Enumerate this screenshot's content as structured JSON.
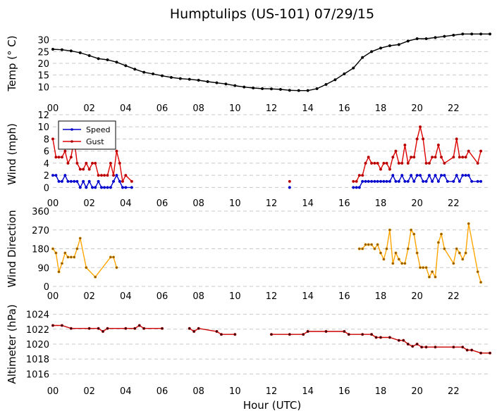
{
  "chart_data": {
    "type": "line",
    "title": "Humptulips (US-101) 07/29/15",
    "xlabel": "Hour (UTC)",
    "x_range": [
      0,
      24
    ],
    "x_ticks": [
      "00",
      "02",
      "04",
      "06",
      "08",
      "10",
      "12",
      "14",
      "16",
      "18",
      "20",
      "22"
    ],
    "grid": "horizontal dashed",
    "panels": [
      {
        "id": "temp",
        "ylabel": "Temp ($^\\circ$C)",
        "ylabel_display": "Temp (° C)",
        "ylim": [
          5,
          35
        ],
        "yticks": [
          10,
          15,
          20,
          25,
          30
        ],
        "series": [
          {
            "color": "#000000",
            "marker_color": "#000000",
            "x": [
              0,
              0.5,
              1,
              1.5,
              2,
              2.5,
              3,
              3.5,
              4,
              4.5,
              5,
              5.5,
              6,
              6.5,
              7,
              7.5,
              8,
              8.5,
              9,
              9.5,
              10,
              10.5,
              11,
              11.5,
              12,
              12.5,
              13,
              13.5,
              14,
              14.5,
              15,
              15.5,
              16,
              16.5,
              17,
              17.5,
              18,
              18.5,
              19,
              19.5,
              20,
              20.5,
              21,
              21.5,
              22,
              22.5,
              23,
              23.5,
              24
            ],
            "values": [
              26,
              25.8,
              25.3,
              24.5,
              23.3,
              22,
              21.5,
              20.5,
              19,
              17.5,
              16.2,
              15.5,
              14.7,
              14,
              13.5,
              13.2,
              12.8,
              12.2,
              11.7,
              11.2,
              10.5,
              9.9,
              9.5,
              9.2,
              9.1,
              8.9,
              8.5,
              8.4,
              8.4,
              9.2,
              11,
              13,
              15.5,
              18,
              22.5,
              25,
              26.5,
              27.5,
              28,
              29.5,
              30.5,
              30.5,
              31,
              31.5,
              32,
              32.5,
              32.5,
              32.5,
              32.5
            ]
          }
        ]
      },
      {
        "id": "wind",
        "ylabel": "Wind (mph)",
        "ylim": [
          -1,
          12
        ],
        "yticks": [
          0,
          2,
          4,
          6,
          8,
          10,
          12
        ],
        "legend": {
          "placement": "top-left"
        },
        "series": [
          {
            "name": "Speed",
            "color": "#0000cc",
            "marker_color": "#0000cc",
            "x": [
              0,
              0.17,
              0.33,
              0.5,
              0.67,
              0.83,
              1,
              1.17,
              1.33,
              1.5,
              1.67,
              1.83,
              2,
              2.17,
              2.33,
              2.5,
              2.67,
              2.83,
              3,
              3.17,
              3.33,
              3.5,
              3.67,
              3.83,
              4,
              4.33,
              13,
              16.5,
              16.67,
              16.83,
              17,
              17.17,
              17.33,
              17.5,
              17.67,
              17.83,
              18,
              18.17,
              18.33,
              18.5,
              18.67,
              18.83,
              19,
              19.17,
              19.33,
              19.5,
              19.67,
              19.83,
              20,
              20.17,
              20.33,
              20.5,
              20.67,
              20.83,
              21,
              21.17,
              21.33,
              21.5,
              21.67,
              22,
              22.17,
              22.33,
              22.5,
              22.67,
              22.83,
              23,
              23.33,
              23.5
            ],
            "values": [
              2,
              2,
              1,
              1,
              2,
              1,
              1,
              1,
              1,
              0,
              1,
              0,
              1,
              0,
              0,
              1,
              0,
              0,
              0,
              0,
              1,
              2,
              1,
              0,
              0,
              0,
              0,
              0,
              0,
              0,
              1,
              1,
              1,
              1,
              1,
              1,
              1,
              1,
              1,
              1,
              2,
              1,
              1,
              2,
              1,
              1,
              2,
              1,
              2,
              2,
              1,
              1,
              2,
              1,
              2,
              1,
              2,
              2,
              1,
              1,
              2,
              1,
              2,
              2,
              2,
              1,
              1,
              1
            ]
          },
          {
            "name": "Gust",
            "color": "#dd0000",
            "marker_color": "#aa0000",
            "x": [
              0,
              0.17,
              0.33,
              0.5,
              0.67,
              0.83,
              1,
              1.17,
              1.33,
              1.5,
              1.67,
              1.83,
              2,
              2.17,
              2.33,
              2.5,
              2.67,
              2.83,
              3,
              3.17,
              3.33,
              3.5,
              3.67,
              3.83,
              4,
              4.33,
              13,
              16.5,
              16.67,
              16.83,
              17,
              17.17,
              17.33,
              17.5,
              17.67,
              17.83,
              18,
              18.17,
              18.33,
              18.5,
              18.67,
              18.83,
              19,
              19.17,
              19.33,
              19.5,
              19.67,
              19.83,
              20,
              20.17,
              20.33,
              20.5,
              20.67,
              20.83,
              21,
              21.17,
              21.33,
              21.5,
              22,
              22.17,
              22.33,
              22.5,
              22.67,
              22.83,
              23.33,
              23.5
            ],
            "values": [
              8,
              5,
              5,
              5,
              6,
              4,
              5,
              8,
              4,
              3,
              3,
              4,
              3,
              4,
              4,
              2,
              2,
              2,
              2,
              4,
              2,
              6,
              4,
              1,
              2,
              1,
              1,
              1,
              1,
              2,
              2,
              4,
              5,
              4,
              4,
              4,
              3,
              4,
              4,
              3,
              5,
              6,
              4,
              4,
              7,
              4,
              5,
              5,
              8,
              10,
              8,
              4,
              4,
              5,
              5,
              7,
              5,
              4,
              5,
              8,
              5,
              5,
              5,
              6,
              4,
              6
            ]
          }
        ]
      },
      {
        "id": "dir",
        "ylabel": "Wind Direction",
        "ylim": [
          0,
          360
        ],
        "yticks": [
          0,
          90,
          180,
          270,
          360
        ],
        "series": [
          {
            "color": "#ffa500",
            "marker_color": "#8b5a00",
            "x": [
              0,
              0.17,
              0.33,
              0.5,
              0.67,
              0.83,
              1,
              1.17,
              1.33,
              1.5,
              1.83,
              2.33,
              3.17,
              3.33,
              3.5,
              16.83,
              17,
              17.17,
              17.33,
              17.5,
              17.67,
              17.83,
              18,
              18.17,
              18.33,
              18.5,
              18.67,
              18.83,
              19,
              19.17,
              19.33,
              19.5,
              19.67,
              19.83,
              20,
              20.17,
              20.33,
              20.5,
              20.67,
              20.83,
              21,
              21.17,
              21.33,
              21.5,
              22,
              22.17,
              22.33,
              22.5,
              22.67,
              22.83,
              23.33,
              23.5
            ],
            "values": [
              180,
              160,
              70,
              110,
              160,
              140,
              140,
              140,
              180,
              230,
              90,
              45,
              140,
              140,
              90,
              180,
              180,
              200,
              200,
              200,
              180,
              200,
              160,
              130,
              180,
              270,
              110,
              160,
              130,
              110,
              110,
              180,
              270,
              250,
              160,
              90,
              90,
              90,
              45,
              70,
              45,
              210,
              250,
              180,
              110,
              180,
              160,
              130,
              160,
              300,
              70,
              20
            ]
          }
        ]
      },
      {
        "id": "altimeter",
        "ylabel": "Altimeter (hPa)",
        "ylim": [
          1015,
          1025
        ],
        "yticks": [
          1016,
          1018,
          1020,
          1022,
          1024
        ],
        "series": [
          {
            "color": "#cc0000",
            "marker_color": "#330000",
            "x": [
              0,
              0.5,
              1,
              2,
              2.5,
              2.75,
              3,
              4,
              4.5,
              4.75,
              5,
              6,
              7.5,
              7.75,
              8,
              9,
              9.25,
              10,
              12,
              13,
              13.75,
              14,
              15,
              16,
              16.25,
              17,
              17.5,
              17.75,
              18,
              18.5,
              19,
              19.25,
              19.5,
              19.75,
              20,
              20.25,
              20.5,
              21,
              22,
              22.5,
              22.75,
              23,
              23.5,
              24
            ],
            "values": [
              1022.5,
              1022.5,
              1022.1,
              1022.1,
              1022.1,
              1021.7,
              1022.1,
              1022.1,
              1022.1,
              1022.5,
              1022.1,
              1022.1,
              1022.1,
              1021.7,
              1022.1,
              1021.7,
              1021.3,
              1021.3,
              1021.3,
              1021.3,
              1021.3,
              1021.7,
              1021.7,
              1021.7,
              1021.3,
              1021.3,
              1021.3,
              1020.9,
              1020.9,
              1020.9,
              1020.5,
              1020.5,
              1020.0,
              1019.7,
              1020.0,
              1019.6,
              1019.6,
              1019.6,
              1019.6,
              1019.6,
              1019.2,
              1019.2,
              1018.8,
              1018.8
            ]
          }
        ]
      }
    ]
  }
}
